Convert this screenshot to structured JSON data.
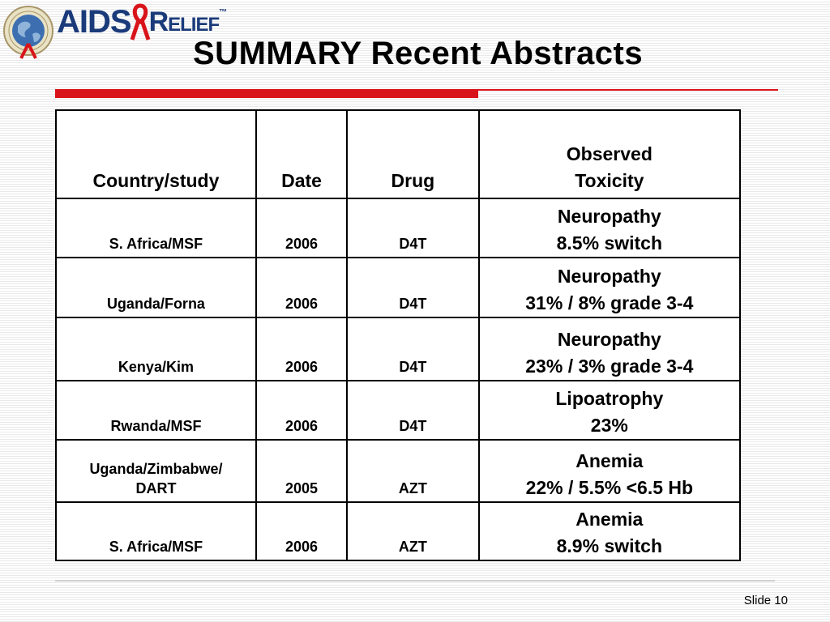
{
  "logo": {
    "brand_aids": "AIDS",
    "brand_relief": "Relief",
    "trademark": "™"
  },
  "title": "SUMMARY Recent Abstracts",
  "table": {
    "headers": {
      "country": "Country/study",
      "date": "Date",
      "drug": "Drug",
      "toxicity_line1": "Observed",
      "toxicity_line2": "Toxicity"
    },
    "rows": [
      {
        "country_l1": "S. Africa/MSF",
        "country_l2": "",
        "date": "2006",
        "drug": "D4T",
        "tox_l1": "Neuropathy",
        "tox_l2": "8.5% switch"
      },
      {
        "country_l1": "Uganda/Forna",
        "country_l2": "",
        "date": "2006",
        "drug": "D4T",
        "tox_l1": "Neuropathy",
        "tox_l2": "31% /  8% grade 3-4"
      },
      {
        "country_l1": "Kenya/Kim",
        "country_l2": "",
        "date": "2006",
        "drug": "D4T",
        "tox_l1": "Neuropathy",
        "tox_l2": "23%  /  3% grade 3-4"
      },
      {
        "country_l1": "Rwanda/MSF",
        "country_l2": "",
        "date": "2006",
        "drug": "D4T",
        "tox_l1": "Lipoatrophy",
        "tox_l2": "23%"
      },
      {
        "country_l1": "Uganda/Zimbabwe/",
        "country_l2": "DART",
        "date": "2005",
        "drug": "AZT",
        "tox_l1": "Anemia",
        "tox_l2": "22% / 5.5% <6.5 Hb"
      },
      {
        "country_l1": "S. Africa/MSF",
        "country_l2": "",
        "date": "2006",
        "drug": "AZT",
        "tox_l1": "Anemia",
        "tox_l2": "8.9% switch"
      }
    ]
  },
  "footer": {
    "slide_number": "Slide 10"
  },
  "colors": {
    "accent_red": "#d8141a",
    "brand_blue": "#1a3a7a"
  }
}
